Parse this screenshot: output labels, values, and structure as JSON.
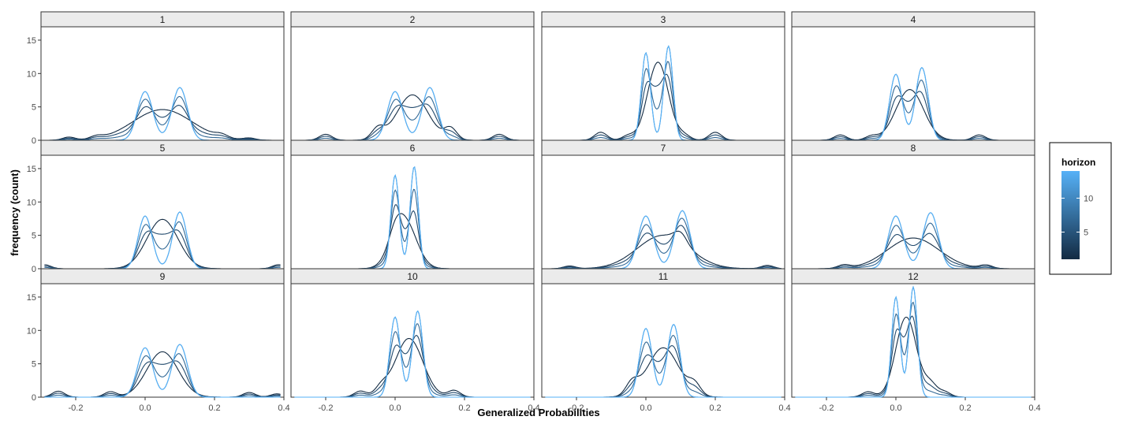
{
  "chart_data": {
    "type": "line",
    "subtype": "faceted density",
    "xlabel": "Generalized Probabilities",
    "ylabel": "frequency (count)",
    "xlim": [
      -0.3,
      0.4
    ],
    "ylim": [
      0,
      17
    ],
    "x_ticks": [
      -0.2,
      0.0,
      0.2,
      0.4
    ],
    "x_tick_labels": [
      "-0.2",
      "0.0",
      "0.2",
      "0.4"
    ],
    "y_ticks": [
      0,
      5,
      10,
      15
    ],
    "y_tick_labels": [
      "0",
      "5",
      "10",
      "15"
    ],
    "line_range": [
      -0.29,
      0.39
    ],
    "legend": {
      "title": "horizon",
      "tick_values": [
        5,
        10
      ],
      "tick_labels": [
        "5",
        "10"
      ],
      "range": [
        1,
        14
      ],
      "color_low": "#132B43",
      "color_high": "#56B1F7"
    },
    "series_horizons": [
      1,
      4,
      7,
      10,
      14
    ],
    "panels": [
      {
        "label": "1",
        "uni": {
          "mu": 0.05,
          "sd": 0.085,
          "peak": 4.6
        },
        "bi": {
          "m1": 0.0,
          "m2": 0.1,
          "s": 0.022,
          "h1": 7.3,
          "h2": 7.9
        },
        "spur": [
          [
            -0.22,
            0.45
          ],
          [
            -0.14,
            0.4
          ],
          [
            0.22,
            0.45
          ],
          [
            0.3,
            0.3
          ]
        ]
      },
      {
        "label": "2",
        "uni": {
          "mu": 0.05,
          "sd": 0.045,
          "peak": 6.8
        },
        "bi": {
          "m1": 0.0,
          "m2": 0.1,
          "s": 0.022,
          "h1": 7.3,
          "h2": 7.9
        },
        "spur": [
          [
            -0.2,
            0.9
          ],
          [
            -0.05,
            1.6
          ],
          [
            0.16,
            1.7
          ],
          [
            0.3,
            0.9
          ]
        ]
      },
      {
        "label": "3",
        "uni": {
          "mu": 0.035,
          "sd": 0.03,
          "peak": 11.7
        },
        "bi": {
          "m1": 0.0,
          "m2": 0.065,
          "s": 0.013,
          "h1": 13.1,
          "h2": 14.1
        },
        "spur": [
          [
            -0.13,
            1.2
          ],
          [
            0.2,
            1.2
          ],
          [
            -0.05,
            0.7
          ],
          [
            0.11,
            0.7
          ]
        ]
      },
      {
        "label": "4",
        "uni": {
          "mu": 0.04,
          "sd": 0.04,
          "peak": 7.6
        },
        "bi": {
          "m1": 0.0,
          "m2": 0.075,
          "s": 0.018,
          "h1": 9.9,
          "h2": 10.9
        },
        "spur": [
          [
            -0.16,
            0.8
          ],
          [
            0.24,
            0.8
          ],
          [
            -0.07,
            0.6
          ]
        ]
      },
      {
        "label": "5",
        "uni": {
          "mu": 0.05,
          "sd": 0.045,
          "peak": 7.4
        },
        "bi": {
          "m1": 0.0,
          "m2": 0.1,
          "s": 0.02,
          "h1": 7.9,
          "h2": 8.5
        },
        "spur": [
          [
            -0.29,
            0.6
          ],
          [
            0.385,
            0.6
          ]
        ]
      },
      {
        "label": "6",
        "uni": {
          "mu": 0.025,
          "sd": 0.035,
          "peak": 7.5
        },
        "bi": {
          "m1": 0.0,
          "m2": 0.055,
          "s": 0.012,
          "h1": 14.0,
          "h2": 15.3
        },
        "spur": [
          [
            0.0,
            1.5
          ]
        ]
      },
      {
        "label": "7",
        "uni": {
          "mu": 0.05,
          "sd": 0.075,
          "peak": 5.0
        },
        "bi": {
          "m1": 0.0,
          "m2": 0.105,
          "s": 0.022,
          "h1": 7.9,
          "h2": 8.7
        },
        "spur": [
          [
            -0.22,
            0.4
          ],
          [
            0.35,
            0.5
          ],
          [
            0.1,
            1.5
          ]
        ]
      },
      {
        "label": "8",
        "uni": {
          "mu": 0.05,
          "sd": 0.075,
          "peak": 4.6
        },
        "bi": {
          "m1": 0.0,
          "m2": 0.1,
          "s": 0.022,
          "h1": 7.9,
          "h2": 8.4
        },
        "spur": [
          [
            -0.15,
            0.5
          ],
          [
            0.26,
            0.5
          ]
        ]
      },
      {
        "label": "9",
        "uni": {
          "mu": 0.05,
          "sd": 0.045,
          "peak": 6.8
        },
        "bi": {
          "m1": 0.0,
          "m2": 0.1,
          "s": 0.022,
          "h1": 7.4,
          "h2": 7.9
        },
        "spur": [
          [
            -0.25,
            0.9
          ],
          [
            -0.1,
            0.8
          ],
          [
            0.3,
            0.7
          ],
          [
            0.38,
            0.5
          ]
        ]
      },
      {
        "label": "10",
        "uni": {
          "mu": 0.04,
          "sd": 0.04,
          "peak": 8.8
        },
        "bi": {
          "m1": 0.0,
          "m2": 0.065,
          "s": 0.015,
          "h1": 12.0,
          "h2": 12.9
        },
        "spur": [
          [
            -0.1,
            0.9
          ],
          [
            0.17,
            1.0
          ],
          [
            -0.04,
            1.2
          ]
        ]
      },
      {
        "label": "11",
        "uni": {
          "mu": 0.05,
          "sd": 0.045,
          "peak": 7.4
        },
        "bi": {
          "m1": 0.0,
          "m2": 0.08,
          "s": 0.018,
          "h1": 10.3,
          "h2": 10.9
        },
        "spur": [
          [
            -0.04,
            1.8
          ],
          [
            0.14,
            1.6
          ]
        ]
      },
      {
        "label": "12",
        "uni": {
          "mu": 0.03,
          "sd": 0.03,
          "peak": 12.0
        },
        "bi": {
          "m1": 0.0,
          "m2": 0.05,
          "s": 0.012,
          "h1": 15.0,
          "h2": 16.5
        },
        "spur": [
          [
            -0.08,
            0.8
          ],
          [
            0.1,
            1.8
          ],
          [
            0.14,
            0.8
          ]
        ]
      }
    ]
  }
}
